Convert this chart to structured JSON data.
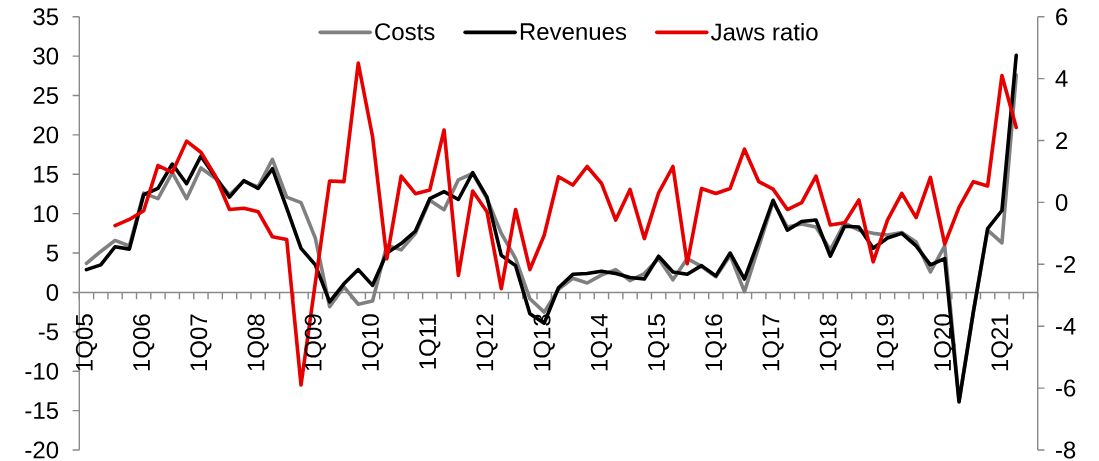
{
  "chart_data": {
    "type": "line",
    "categories": [
      "1Q05",
      null,
      null,
      null,
      "1Q06",
      null,
      null,
      null,
      "1Q07",
      null,
      null,
      null,
      "1Q08",
      null,
      null,
      null,
      "1Q09",
      null,
      null,
      null,
      "1Q10",
      null,
      null,
      null,
      "1Q11",
      null,
      null,
      null,
      "1Q12",
      null,
      null,
      null,
      "1Q13",
      null,
      null,
      null,
      "1Q14",
      null,
      null,
      null,
      "1Q15",
      null,
      null,
      null,
      "1Q16",
      null,
      null,
      null,
      "1Q17",
      null,
      null,
      null,
      "1Q18",
      null,
      null,
      null,
      "1Q19",
      null,
      null,
      null,
      "1Q20",
      null,
      null,
      null,
      "1Q21",
      null,
      null
    ],
    "series": [
      {
        "name": "Costs",
        "color": "#808080",
        "values": [
          3.7,
          5.2,
          6.6,
          5.9,
          12.6,
          11.9,
          15.2,
          11.9,
          15.8,
          14.5,
          12.4,
          14.1,
          13.4,
          16.9,
          12.1,
          11.4,
          6.9,
          -1.8,
          0.7,
          -1.5,
          -1.1,
          6.0,
          5.4,
          7.5,
          11.7,
          10.5,
          14.3,
          15.1,
          11.9,
          7.5,
          4.3,
          -0.8,
          -2.5,
          0.4,
          1.8,
          1.2,
          2.2,
          2.9,
          1.5,
          2.4,
          4.3,
          1.6,
          4.3,
          3.3,
          2.0,
          4.7,
          0.1,
          5.8,
          11.5,
          8.3,
          8.7,
          8.3,
          5.4,
          8.8,
          7.9,
          7.5,
          7.3,
          7.6,
          6.4,
          2.6,
          5.9,
          -13.8,
          -2.5,
          7.9,
          6.3,
          27.6,
          null
        ]
      },
      {
        "name": "Revenues",
        "color": "#000000",
        "values": [
          2.9,
          3.5,
          5.8,
          5.5,
          12.4,
          13.2,
          16.3,
          13.8,
          17.3,
          14.7,
          12.1,
          14.2,
          13.2,
          15.7,
          10.7,
          5.6,
          3.5,
          -1.2,
          1.1,
          2.9,
          0.9,
          5.0,
          6.2,
          7.8,
          11.9,
          12.8,
          11.8,
          15.2,
          12.1,
          4.7,
          3.4,
          -2.7,
          -3.9,
          0.6,
          2.3,
          2.4,
          2.7,
          2.4,
          1.9,
          1.7,
          4.6,
          2.6,
          2.3,
          3.4,
          2.1,
          5.0,
          1.7,
          6.6,
          11.7,
          7.9,
          9.0,
          9.2,
          4.6,
          8.4,
          8.3,
          5.6,
          6.9,
          7.5,
          5.9,
          3.5,
          4.3,
          -13.9,
          -2.5,
          8.1,
          10.4,
          30.1,
          null
        ]
      },
      {
        "name": "Jaws ratio",
        "color": "#e60000",
        "axis": "y2",
        "values": [
          null,
          null,
          -0.75,
          -0.55,
          -0.27,
          1.19,
          0.97,
          1.98,
          1.62,
          0.86,
          -0.23,
          -0.19,
          -0.3,
          -1.11,
          -1.2,
          -5.9,
          -2.6,
          0.69,
          0.67,
          4.5,
          2.13,
          -1.82,
          0.85,
          0.28,
          0.4,
          2.34,
          -2.36,
          0.37,
          -0.3,
          -2.79,
          -0.23,
          -2.17,
          -1.06,
          0.83,
          0.56,
          1.16,
          0.62,
          -0.57,
          0.42,
          -1.17,
          0.31,
          1.16,
          -1.98,
          0.45,
          0.29,
          0.45,
          1.72,
          0.67,
          0.43,
          -0.23,
          -0.01,
          0.85,
          -0.73,
          -0.66,
          0.08,
          -1.92,
          -0.57,
          0.29,
          -0.49,
          0.81,
          -1.35,
          -0.16,
          0.67,
          0.53,
          4.1,
          2.42,
          null
        ]
      }
    ],
    "ylim": [
      -20,
      35
    ],
    "yticks": [
      -20,
      -15,
      -10,
      -5,
      0,
      5,
      10,
      15,
      20,
      25,
      30,
      35
    ],
    "y2lim": [
      -8,
      6
    ],
    "y2ticks": [
      -8,
      -6,
      -4,
      -2,
      0,
      2,
      4,
      6
    ],
    "legend": "top",
    "marker": "none",
    "line_style": "solid"
  }
}
